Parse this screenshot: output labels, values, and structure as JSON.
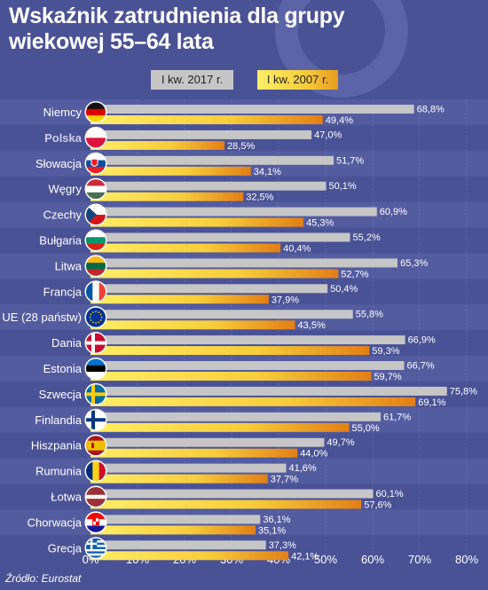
{
  "title_line1": "Wskaźnik zatrudnienia dla grupy",
  "title_line2": "wiekowej 55–64 lata",
  "source": "Źródło: Eurostat",
  "colors": {
    "background": "#4a5296",
    "row_alt": "#545ca0",
    "series_2017": "#c6c6c6",
    "series_2007_light": "#ffee66",
    "series_2007_mid": "#f7cd3a",
    "series_2007_dark": "#e27f15",
    "highlight_label": "#c9cce8"
  },
  "chart_data": {
    "type": "bar",
    "orientation": "horizontal",
    "categories": [
      "Niemcy",
      "Polska",
      "Słowacja",
      "Węgry",
      "Czechy",
      "Bułgaria",
      "Litwa",
      "Francja",
      "UE (28 państw)",
      "Dania",
      "Estonia",
      "Szwecja",
      "Finlandia",
      "Hiszpania",
      "Rumunia",
      "Łotwa",
      "Chorwacja",
      "Grecja"
    ],
    "highlighted_category": "Polska",
    "flag_icons": [
      "germany-flag",
      "poland-flag",
      "slovakia-flag",
      "hungary-flag",
      "czechia-flag",
      "bulgaria-flag",
      "lithuania-flag",
      "france-flag",
      "eu-flag",
      "denmark-flag",
      "estonia-flag",
      "sweden-flag",
      "finland-flag",
      "spain-flag",
      "romania-flag",
      "latvia-flag",
      "croatia-flag",
      "greece-flag"
    ],
    "series": [
      {
        "name": "I kw. 2017 r.",
        "values": [
          68.8,
          47.0,
          51.7,
          50.1,
          60.9,
          55.2,
          65.3,
          50.4,
          55.8,
          66.9,
          66.7,
          75.8,
          61.7,
          49.7,
          41.6,
          60.1,
          36.1,
          37.3
        ],
        "labels": [
          "68,8%",
          "47,0%",
          "51,7%",
          "50,1%",
          "60,9%",
          "55,2%",
          "65,3%",
          "50,4%",
          "55,8%",
          "66,9%",
          "66,7%",
          "75,8%",
          "61,7%",
          "49,7%",
          "41,6%",
          "60,1%",
          "36,1%",
          "37,3%"
        ]
      },
      {
        "name": "I kw. 2007 r.",
        "values": [
          49.4,
          28.5,
          34.1,
          32.5,
          45.3,
          40.4,
          52.7,
          37.9,
          43.5,
          59.3,
          59.7,
          69.1,
          55.0,
          44.0,
          37.7,
          57.6,
          35.1,
          42.1
        ],
        "labels": [
          "49,4%",
          "28,5%",
          "34,1%",
          "32,5%",
          "45,3%",
          "40,4%",
          "52,7%",
          "37,9%",
          "43,5%",
          "59,3%",
          "59,7%",
          "69,1%",
          "55,0%",
          "44,0%",
          "37,7%",
          "57,6%",
          "35,1%",
          "42,1%"
        ]
      }
    ],
    "x_ticks": [
      "0%",
      "10%",
      "20%",
      "30%",
      "40%",
      "50%",
      "60%",
      "70%",
      "80%"
    ],
    "xlim": [
      0,
      80
    ],
    "legend_position": "top"
  }
}
